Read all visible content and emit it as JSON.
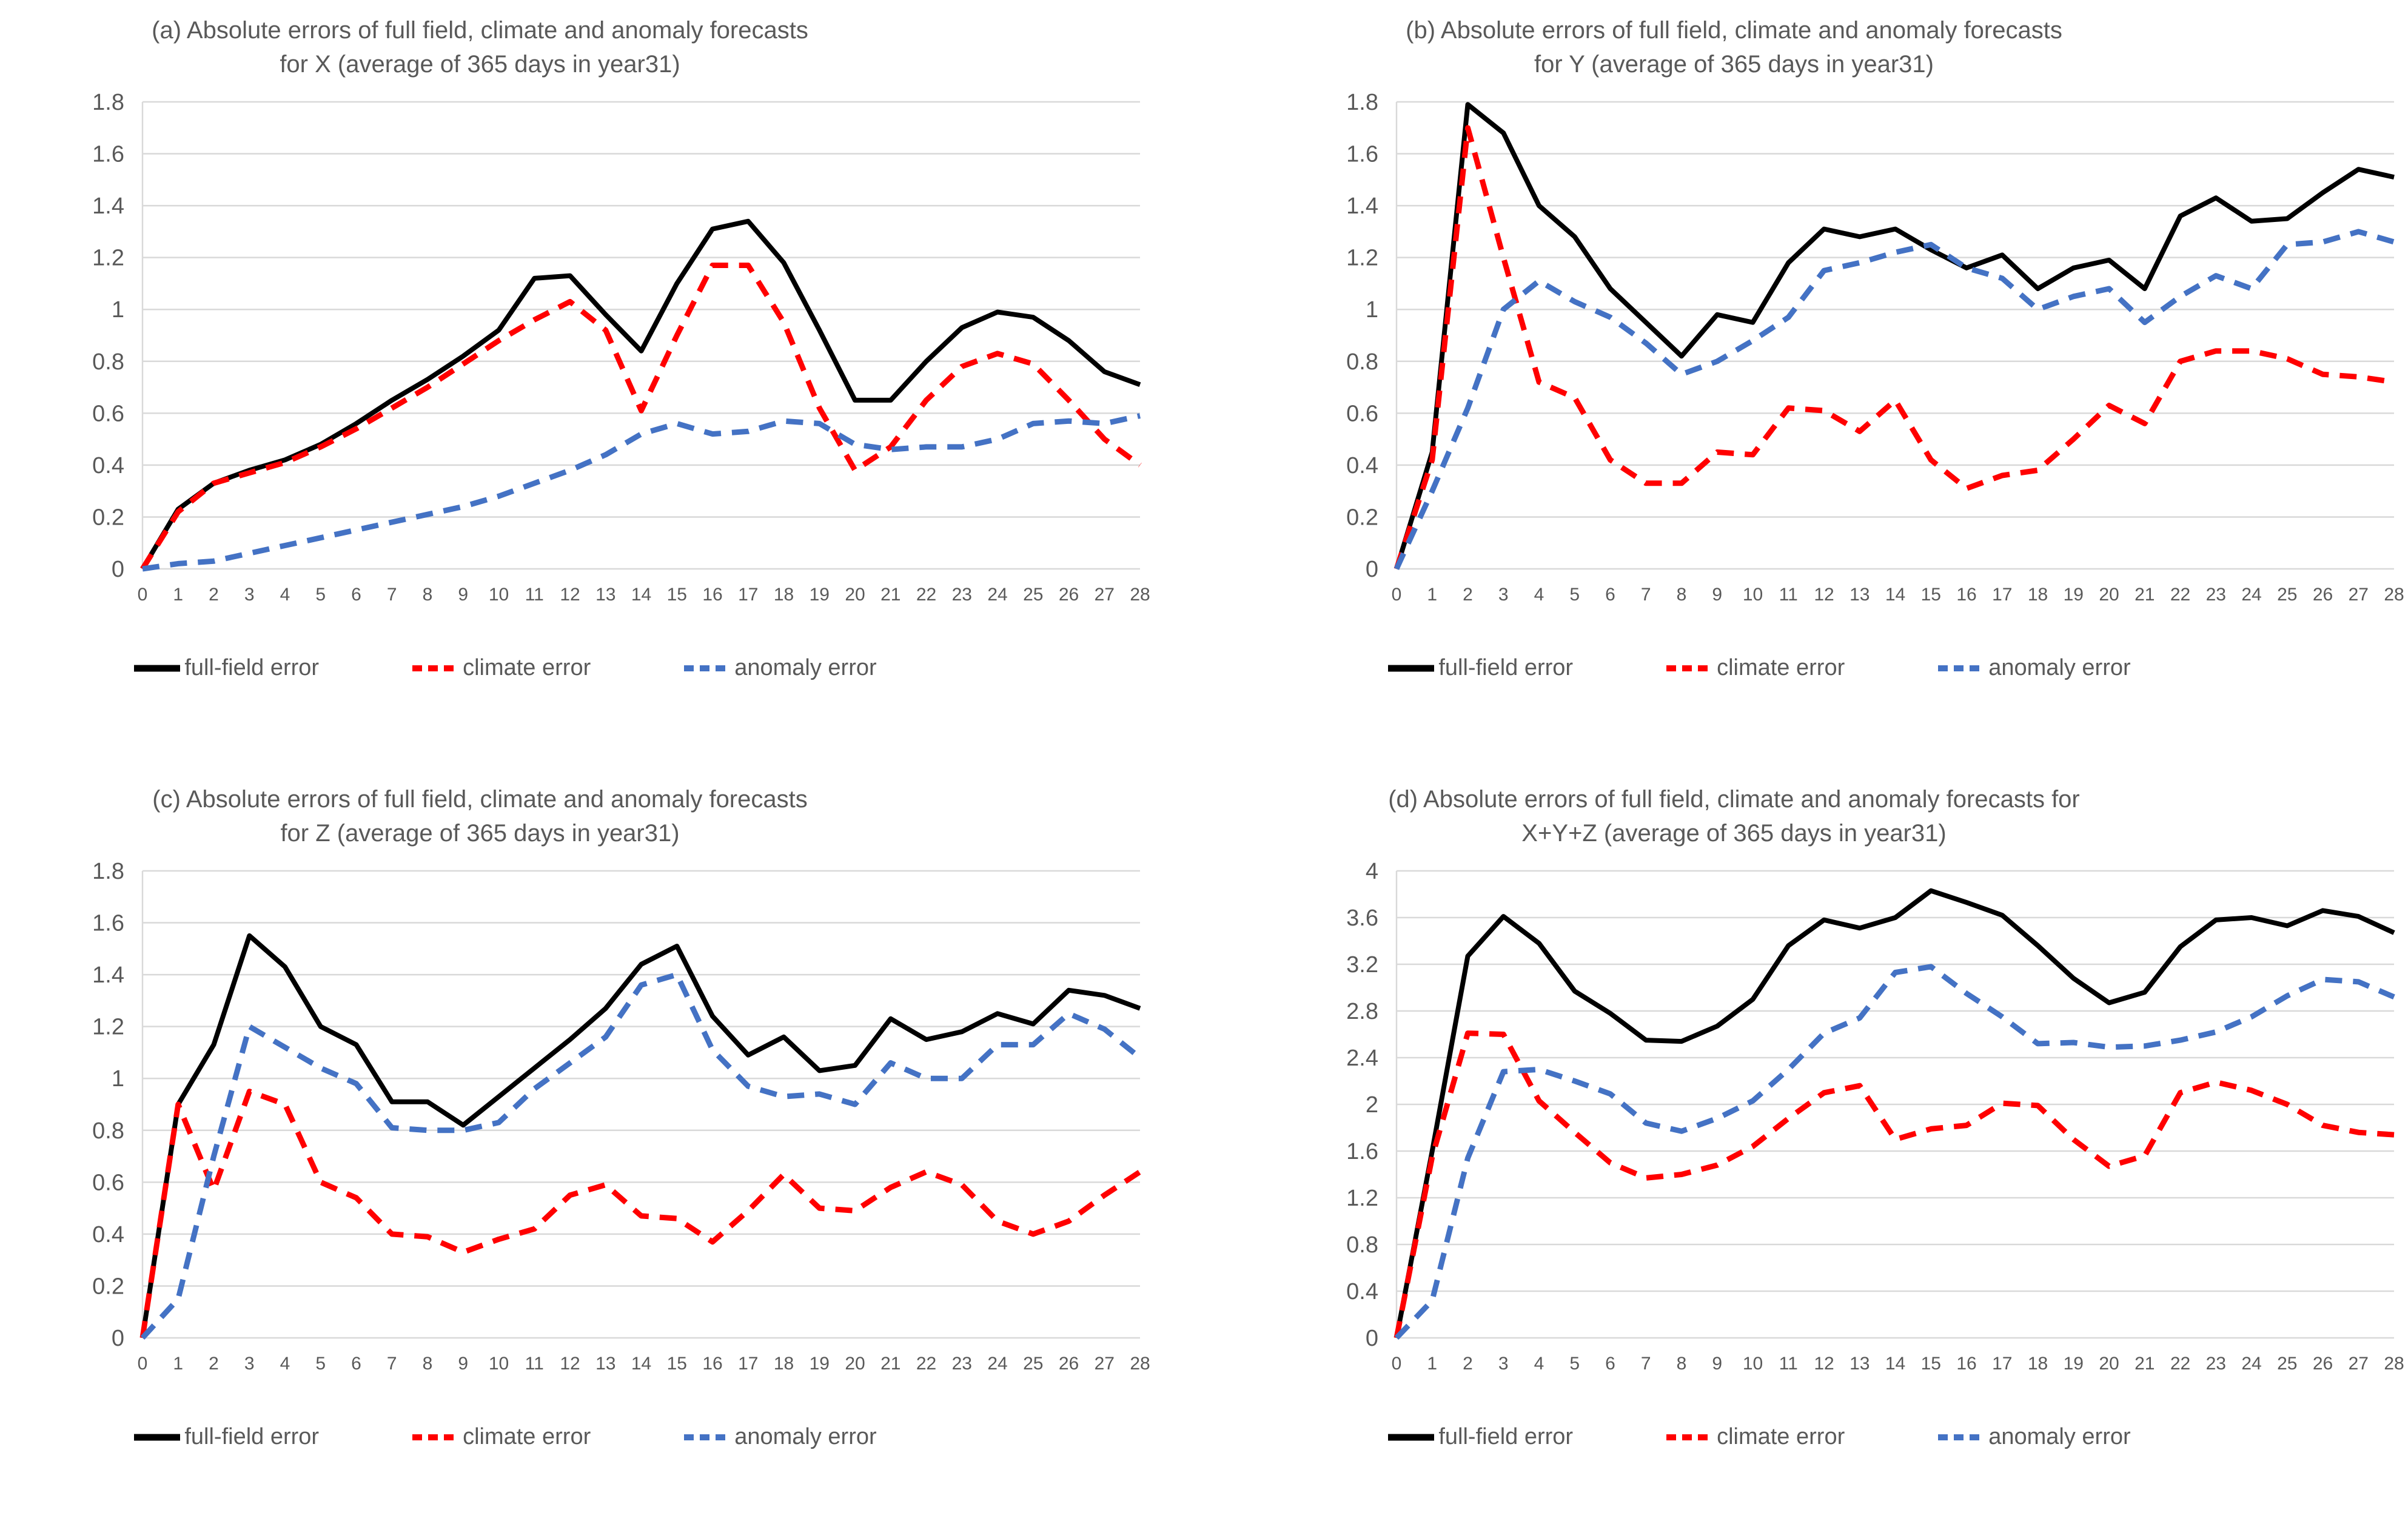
{
  "colors": {
    "full_field": "#000000",
    "climate": "#FF0000",
    "anomaly": "#4472C4",
    "gridline": "#D9D9D9",
    "axis_text": "#595959"
  },
  "chart_data": [
    {
      "type": "line",
      "panel": "a",
      "title_line1": "(a) Absolute errors of full field, climate and anomaly forecasts",
      "title_line2": "for X (average of 365 days in year31)",
      "grid": true,
      "legend_position": "bottom",
      "xlabel": "",
      "ylabel": "",
      "ylim": [
        0,
        1.8
      ],
      "y_ticks": [
        1.8,
        1.6,
        1.4,
        1.2,
        1,
        0.8,
        0.6,
        0.4,
        0.2,
        0
      ],
      "x": [
        0,
        1,
        2,
        3,
        4,
        5,
        6,
        7,
        8,
        9,
        10,
        11,
        12,
        13,
        14,
        15,
        16,
        17,
        18,
        19,
        20,
        21,
        22,
        23,
        24,
        25,
        26,
        27,
        28
      ],
      "series": [
        {
          "name": "full-field error",
          "color": "#000000",
          "dash": "solid",
          "values": [
            0,
            0.23,
            0.33,
            0.38,
            0.42,
            0.48,
            0.56,
            0.65,
            0.73,
            0.82,
            0.92,
            1.12,
            1.13,
            0.98,
            0.84,
            1.1,
            1.31,
            1.34,
            1.18,
            0.92,
            0.65,
            0.65,
            0.8,
            0.93,
            0.99,
            0.97,
            0.88,
            0.76,
            0.71
          ]
        },
        {
          "name": "climate error",
          "color": "#FF0000",
          "dash": "dashed",
          "values": [
            0,
            0.22,
            0.33,
            0.37,
            0.41,
            0.47,
            0.54,
            0.62,
            0.7,
            0.79,
            0.88,
            0.96,
            1.03,
            0.92,
            0.61,
            0.9,
            1.17,
            1.17,
            0.95,
            0.62,
            0.38,
            0.47,
            0.65,
            0.78,
            0.83,
            0.79,
            0.65,
            0.5,
            0.4
          ]
        },
        {
          "name": "anomaly error",
          "color": "#4472C4",
          "dash": "dashed",
          "values": [
            0,
            0.02,
            0.03,
            0.06,
            0.09,
            0.12,
            0.15,
            0.18,
            0.21,
            0.24,
            0.28,
            0.33,
            0.38,
            0.44,
            0.52,
            0.56,
            0.52,
            0.53,
            0.57,
            0.56,
            0.48,
            0.46,
            0.47,
            0.47,
            0.5,
            0.56,
            0.57,
            0.56,
            0.59
          ]
        }
      ]
    },
    {
      "type": "line",
      "panel": "b",
      "title_line1": "(b) Absolute errors of full field, climate and anomaly forecasts",
      "title_line2": "for Y (average of 365 days in year31)",
      "grid": true,
      "legend_position": "bottom",
      "xlabel": "",
      "ylabel": "",
      "ylim": [
        0,
        1.8
      ],
      "y_ticks": [
        1.8,
        1.6,
        1.4,
        1.2,
        1,
        0.8,
        0.6,
        0.4,
        0.2,
        0
      ],
      "x": [
        0,
        1,
        2,
        3,
        4,
        5,
        6,
        7,
        8,
        9,
        10,
        11,
        12,
        13,
        14,
        15,
        16,
        17,
        18,
        19,
        20,
        21,
        22,
        23,
        24,
        25,
        26,
        27,
        28
      ],
      "series": [
        {
          "name": "full-field error",
          "color": "#000000",
          "dash": "solid",
          "values": [
            0,
            0.45,
            1.79,
            1.68,
            1.4,
            1.28,
            1.08,
            0.95,
            0.82,
            0.98,
            0.95,
            1.18,
            1.31,
            1.28,
            1.31,
            1.23,
            1.16,
            1.21,
            1.08,
            1.16,
            1.19,
            1.08,
            1.36,
            1.43,
            1.34,
            1.35,
            1.45,
            1.54,
            1.51
          ]
        },
        {
          "name": "climate error",
          "color": "#FF0000",
          "dash": "dashed",
          "values": [
            0,
            0.42,
            1.7,
            1.2,
            0.72,
            0.66,
            0.42,
            0.33,
            0.33,
            0.45,
            0.44,
            0.62,
            0.61,
            0.53,
            0.65,
            0.42,
            0.31,
            0.36,
            0.38,
            0.5,
            0.63,
            0.56,
            0.8,
            0.84,
            0.84,
            0.81,
            0.75,
            0.74,
            0.72
          ]
        },
        {
          "name": "anomaly error",
          "color": "#4472C4",
          "dash": "dashed",
          "values": [
            0,
            0.3,
            0.62,
            1.0,
            1.11,
            1.03,
            0.97,
            0.87,
            0.75,
            0.8,
            0.88,
            0.97,
            1.15,
            1.18,
            1.22,
            1.25,
            1.16,
            1.12,
            1.0,
            1.05,
            1.08,
            0.95,
            1.05,
            1.13,
            1.08,
            1.25,
            1.26,
            1.3,
            1.26
          ]
        }
      ]
    },
    {
      "type": "line",
      "panel": "c",
      "title_line1": "(c) Absolute errors of full field, climate and anomaly forecasts",
      "title_line2": "for Z (average of 365 days in year31)",
      "grid": true,
      "legend_position": "bottom",
      "xlabel": "",
      "ylabel": "",
      "ylim": [
        0,
        1.8
      ],
      "y_ticks": [
        1.8,
        1.6,
        1.4,
        1.2,
        1,
        0.8,
        0.6,
        0.4,
        0.2,
        0
      ],
      "x": [
        0,
        1,
        2,
        3,
        4,
        5,
        6,
        7,
        8,
        9,
        10,
        11,
        12,
        13,
        14,
        15,
        16,
        17,
        18,
        19,
        20,
        21,
        22,
        23,
        24,
        25,
        26,
        27,
        28
      ],
      "series": [
        {
          "name": "full-field error",
          "color": "#000000",
          "dash": "solid",
          "values": [
            0,
            0.9,
            1.13,
            1.55,
            1.43,
            1.2,
            1.13,
            0.91,
            0.91,
            0.82,
            0.93,
            1.04,
            1.15,
            1.27,
            1.44,
            1.51,
            1.24,
            1.09,
            1.16,
            1.03,
            1.05,
            1.23,
            1.15,
            1.18,
            1.25,
            1.21,
            1.34,
            1.32,
            1.27
          ]
        },
        {
          "name": "climate error",
          "color": "#FF0000",
          "dash": "dashed",
          "values": [
            0,
            0.9,
            0.57,
            0.95,
            0.9,
            0.6,
            0.54,
            0.4,
            0.39,
            0.33,
            0.38,
            0.42,
            0.55,
            0.59,
            0.47,
            0.46,
            0.37,
            0.49,
            0.63,
            0.5,
            0.49,
            0.58,
            0.64,
            0.59,
            0.45,
            0.4,
            0.45,
            0.55,
            0.64
          ]
        },
        {
          "name": "anomaly error",
          "color": "#4472C4",
          "dash": "dashed",
          "values": [
            0,
            0.15,
            0.7,
            1.2,
            1.12,
            1.04,
            0.98,
            0.81,
            0.8,
            0.8,
            0.83,
            0.96,
            1.06,
            1.16,
            1.36,
            1.4,
            1.11,
            0.97,
            0.93,
            0.94,
            0.9,
            1.06,
            1.0,
            1.0,
            1.13,
            1.13,
            1.25,
            1.19,
            1.08
          ]
        }
      ]
    },
    {
      "type": "line",
      "panel": "d",
      "title_line1": "(d) Absolute errors of full field, climate and anomaly forecasts for",
      "title_line2": "X+Y+Z (average of 365 days in year31)",
      "grid": true,
      "legend_position": "bottom",
      "xlabel": "",
      "ylabel": "",
      "ylim": [
        0,
        4
      ],
      "y_ticks": [
        4,
        3.6,
        3.2,
        2.8,
        2.4,
        2,
        1.6,
        1.2,
        0.8,
        0.4,
        0
      ],
      "x": [
        0,
        1,
        2,
        3,
        4,
        5,
        6,
        7,
        8,
        9,
        10,
        11,
        12,
        13,
        14,
        15,
        16,
        17,
        18,
        19,
        20,
        21,
        22,
        23,
        24,
        25,
        26,
        27,
        28
      ],
      "series": [
        {
          "name": "full-field error",
          "color": "#000000",
          "dash": "solid",
          "values": [
            0,
            1.6,
            3.27,
            3.61,
            3.38,
            2.97,
            2.78,
            2.55,
            2.54,
            2.67,
            2.9,
            3.36,
            3.58,
            3.51,
            3.6,
            3.83,
            3.73,
            3.62,
            3.36,
            3.08,
            2.87,
            2.96,
            3.35,
            3.58,
            3.6,
            3.53,
            3.66,
            3.61,
            3.47
          ]
        },
        {
          "name": "climate error",
          "color": "#FF0000",
          "dash": "dashed",
          "values": [
            0,
            1.55,
            2.61,
            2.6,
            2.03,
            1.76,
            1.5,
            1.37,
            1.4,
            1.48,
            1.64,
            1.88,
            2.1,
            2.16,
            1.7,
            1.79,
            1.82,
            2.01,
            1.99,
            1.7,
            1.47,
            1.56,
            2.1,
            2.19,
            2.12,
            2.0,
            1.82,
            1.76,
            1.74
          ]
        },
        {
          "name": "anomaly error",
          "color": "#4472C4",
          "dash": "dashed",
          "values": [
            0,
            0.32,
            1.54,
            2.28,
            2.3,
            2.2,
            2.09,
            1.84,
            1.77,
            1.88,
            2.03,
            2.3,
            2.61,
            2.74,
            3.13,
            3.18,
            2.95,
            2.75,
            2.52,
            2.53,
            2.49,
            2.5,
            2.55,
            2.62,
            2.75,
            2.93,
            3.07,
            3.05,
            2.92
          ]
        }
      ]
    }
  ]
}
